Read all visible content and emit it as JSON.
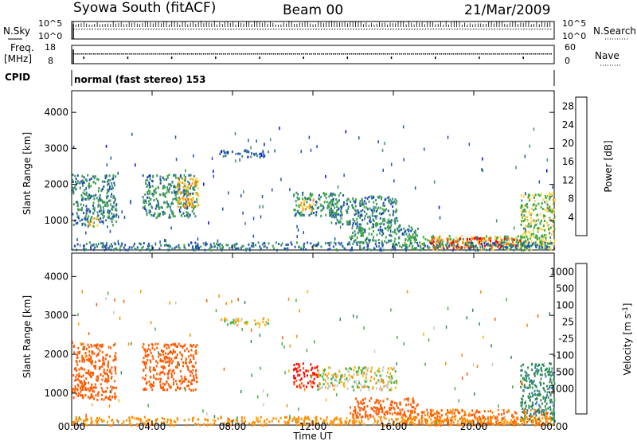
{
  "header": {
    "station": "Syowa South (fitACF)",
    "beam": "Beam 00",
    "date": "21/Mar/2009"
  },
  "top_panels": {
    "nsky": {
      "label": "N.Sky",
      "ticks": [
        "10^5",
        "10^0"
      ]
    },
    "nsearch": {
      "label": "N.Search",
      "ticks": [
        "10^5",
        "10^0"
      ]
    },
    "freq": {
      "label_line1": "Freq.",
      "label_line2": "[MHz]",
      "ticks": [
        "18",
        "8"
      ]
    },
    "nave": {
      "label": "Nave",
      "ticks": [
        "60",
        "0"
      ]
    },
    "cpid": {
      "label": "CPID",
      "value": "normal (fast stereo) 153"
    }
  },
  "colors": {
    "power_scale": [
      "#0000ff",
      "#1f4fb5",
      "#3f8f6f",
      "#3caa3c",
      "#ffd23c",
      "#ff9a00",
      "#ff6a00",
      "#ff0000"
    ],
    "velocity_scale": [
      "#ff0000",
      "#ff5a00",
      "#ff8c00",
      "#ffb000",
      "#c8c8c8",
      "#3cb43c",
      "#2e8b57",
      "#3a7ab8",
      "#1a3fb0"
    ]
  },
  "chart_data": [
    {
      "type": "heatmap",
      "name": "power",
      "xlabel": "Time UT",
      "ylabel": "Slant Range [km]",
      "xticks": [
        "00:00",
        "04:00",
        "08:00",
        "12:00",
        "16:00",
        "20:00",
        "00:00"
      ],
      "xlim_hours": [
        0,
        24
      ],
      "yticks": [
        "1000",
        "2000",
        "3000",
        "4000"
      ],
      "ylim_km": [
        180,
        4600
      ],
      "colorbar": {
        "label": "Power [dB]",
        "ticks": [
          "28",
          "24",
          "20",
          "16",
          "12",
          "8",
          "4"
        ],
        "range": [
          0,
          30
        ]
      },
      "echo_regions": [
        {
          "t": [
            0.0,
            2.2
          ],
          "r": [
            850,
            2300
          ],
          "value": 9
        },
        {
          "t": [
            0.8,
            1.4
          ],
          "r": [
            850,
            1150
          ],
          "value": 18
        },
        {
          "t": [
            3.5,
            6.2
          ],
          "r": [
            1100,
            2300
          ],
          "value": 10
        },
        {
          "t": [
            5.2,
            6.3
          ],
          "r": [
            1400,
            2200
          ],
          "value": 20
        },
        {
          "t": [
            7.3,
            9.8
          ],
          "r": [
            2780,
            2980
          ],
          "value": 7
        },
        {
          "t": [
            11.0,
            13.5
          ],
          "r": [
            1150,
            1800
          ],
          "value": 10
        },
        {
          "t": [
            11.3,
            12.0
          ],
          "r": [
            1300,
            1650
          ],
          "value": 19
        },
        {
          "t": [
            12.8,
            16.2
          ],
          "r": [
            900,
            1700
          ],
          "value": 9
        },
        {
          "t": [
            13.8,
            17.2
          ],
          "r": [
            400,
            900
          ],
          "value": 10
        },
        {
          "t": [
            16.5,
            23.8
          ],
          "r": [
            200,
            600
          ],
          "value": 14
        },
        {
          "t": [
            17.8,
            22.5
          ],
          "r": [
            250,
            550
          ],
          "value": 26
        },
        {
          "t": [
            22.3,
            24.0
          ],
          "r": [
            300,
            1800
          ],
          "value": 14
        },
        {
          "t": [
            0.0,
            24.0
          ],
          "r": [
            200,
            420
          ],
          "value": 8
        }
      ]
    },
    {
      "type": "heatmap",
      "name": "velocity",
      "xlabel": "Time UT",
      "ylabel": "Slant Range [km]",
      "xticks": [
        "00:00",
        "04:00",
        "08:00",
        "12:00",
        "16:00",
        "20:00",
        "00:00"
      ],
      "xlim_hours": [
        0,
        24
      ],
      "yticks": [
        "1000",
        "2000",
        "3000",
        "4000"
      ],
      "ylim_km": [
        180,
        4600
      ],
      "colorbar": {
        "label": "Velocity [m s^-1]",
        "ticks": [
          "1000",
          "500",
          "100",
          "25",
          "-25",
          "-100",
          "-500",
          "-1000"
        ],
        "range": [
          -1000,
          1000
        ]
      },
      "echo_regions": [
        {
          "t": [
            0.0,
            2.2
          ],
          "r": [
            850,
            2300
          ],
          "value": -180
        },
        {
          "t": [
            3.5,
            6.2
          ],
          "r": [
            1100,
            2300
          ],
          "value": -260
        },
        {
          "t": [
            7.3,
            9.8
          ],
          "r": [
            2780,
            2980
          ],
          "value": 10
        },
        {
          "t": [
            11.0,
            12.2
          ],
          "r": [
            1150,
            1800
          ],
          "value": -600
        },
        {
          "t": [
            12.2,
            16.2
          ],
          "r": [
            1100,
            1700
          ],
          "value": 5
        },
        {
          "t": [
            13.8,
            17.2
          ],
          "r": [
            400,
            900
          ],
          "value": -200
        },
        {
          "t": [
            16.5,
            23.8
          ],
          "r": [
            200,
            600
          ],
          "value": -120
        },
        {
          "t": [
            22.3,
            24.0
          ],
          "r": [
            300,
            1800
          ],
          "value": 250
        },
        {
          "t": [
            0.0,
            24.0
          ],
          "r": [
            200,
            420
          ],
          "value": -60
        }
      ]
    }
  ]
}
